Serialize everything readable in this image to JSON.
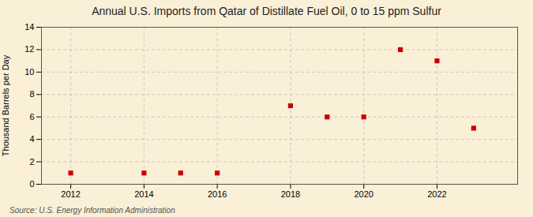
{
  "chart_data": {
    "type": "scatter",
    "title": "Annual U.S. Imports from Qatar of Distillate Fuel Oil, 0 to 15 ppm Sulfur",
    "ylabel": "Thousand Barrels per Day",
    "source": "Source: U.S. Energy Information Administration",
    "x": [
      2012,
      2014,
      2015,
      2016,
      2018,
      2019,
      2020,
      2021,
      2022,
      2023
    ],
    "values": [
      1,
      1,
      1,
      1,
      7,
      6,
      6,
      12,
      11,
      5
    ],
    "color": "#cc0000",
    "marker": "square",
    "xlim": [
      2011.2,
      2024.2
    ],
    "xticks": [
      2012,
      2014,
      2016,
      2018,
      2020,
      2022
    ],
    "ylim": [
      0,
      14
    ],
    "yticks": [
      0,
      2,
      4,
      6,
      8,
      10,
      12,
      14
    ],
    "grid": true
  }
}
